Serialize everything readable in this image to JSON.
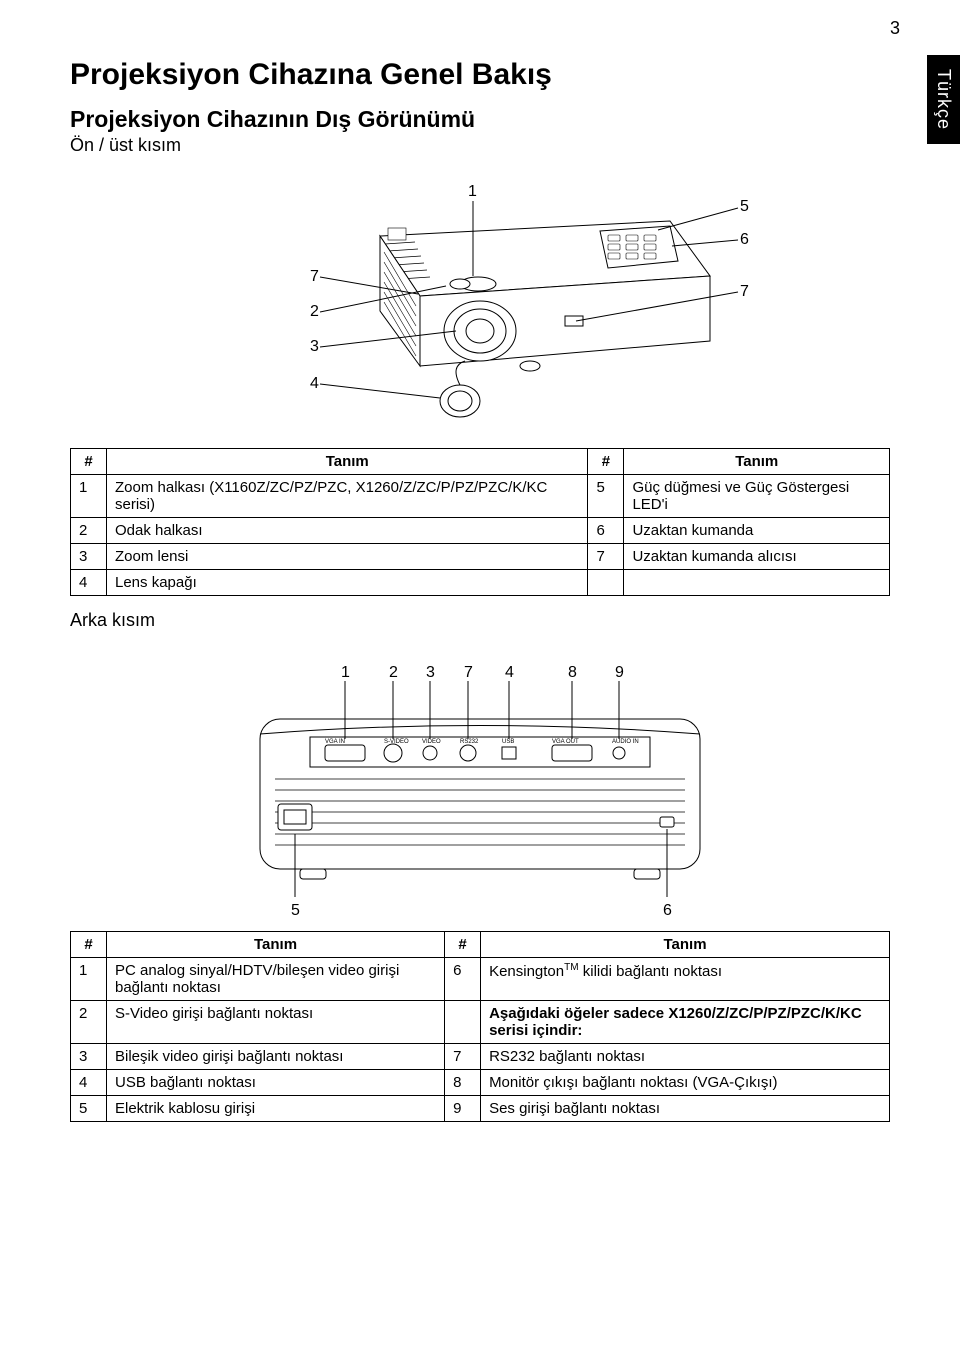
{
  "page_number": "3",
  "side_tab": "Türkçe",
  "h1": "Projeksiyon Cihazına Genel Bakış",
  "h2": "Projeksiyon Cihazının Dış Görünümü",
  "subtitle_front": "Ön / üst kısım",
  "subtitle_rear": "Arka kısım",
  "front_diagram": {
    "callouts_left": [
      "1",
      "7",
      "2",
      "3",
      "4"
    ],
    "callouts_right": [
      "5",
      "6",
      "7"
    ],
    "stroke": "#000000",
    "fill": "#ffffff",
    "font_size": 16
  },
  "table1": {
    "headers": [
      "#",
      "Tanım",
      "#",
      "Tanım"
    ],
    "rows": [
      [
        "1",
        "Zoom halkası (X1160Z/ZC/PZ/PZC, X1260/Z/ZC/P/PZ/PZC/K/KC serisi)",
        "5",
        "Güç düğmesi ve Güç Göstergesi LED'i"
      ],
      [
        "2",
        "Odak halkası",
        "6",
        "Uzaktan kumanda"
      ],
      [
        "3",
        "Zoom lensi",
        "7",
        "Uzaktan kumanda alıcısı"
      ],
      [
        "4",
        "Lens kapağı",
        "",
        ""
      ]
    ],
    "col_widths": [
      "36px",
      "auto",
      "36px",
      "auto"
    ]
  },
  "rear_diagram": {
    "top_nums": [
      "1",
      "2",
      "3",
      "7",
      "4",
      "8",
      "9"
    ],
    "bottom_nums": [
      "5",
      "6"
    ],
    "port_labels": [
      "VGA IN",
      "S-VIDEO",
      "VIDEO",
      "RS232",
      "USB",
      "VGA OUT",
      "AUDIO IN"
    ],
    "stroke": "#000000",
    "font_size": 16,
    "label_font_size": 6
  },
  "table2": {
    "headers": [
      "#",
      "Tanım",
      "#",
      "Tanım"
    ],
    "rows": [
      [
        "1",
        "PC analog sinyal/HDTV/bileşen video girişi bağlantı noktası",
        "6",
        "Kensington™ kilidi bağlantı noktası"
      ],
      [
        "2",
        "S-Video girişi bağlantı noktası",
        "",
        "Aşağıdaki öğeler sadece X1260/Z/ZC/P/PZ/PZC/K/KC serisi içindir:"
      ],
      [
        "3",
        "Bileşik video girişi bağlantı noktası",
        "7",
        "RS232 bağlantı noktası"
      ],
      [
        "4",
        "USB bağlantı noktası",
        "8",
        "Monitör çıkışı bağlantı noktası (VGA-Çıkışı)"
      ],
      [
        "5",
        "Elektrik kablosu girişi",
        "9",
        "Ses girişi bağlantı noktası"
      ]
    ],
    "bold_cell": {
      "row": 1,
      "col": 3
    }
  }
}
